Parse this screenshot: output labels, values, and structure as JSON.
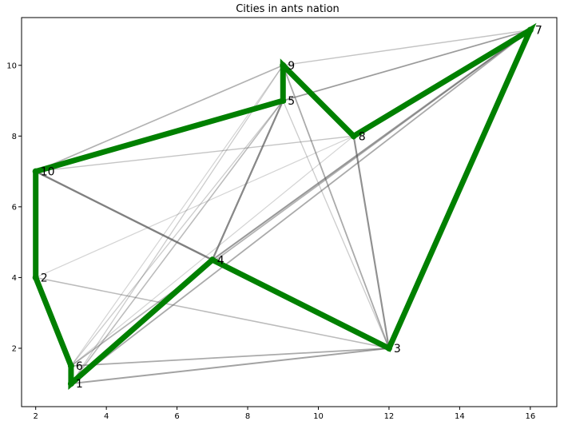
{
  "chart_data": {
    "type": "scatter",
    "title": "Cities in ants nation",
    "xlabel": "",
    "ylabel": "",
    "xlim": [
      1.6,
      16.75
    ],
    "ylim": [
      0.35,
      11.35
    ],
    "xticks": [
      2,
      4,
      6,
      8,
      10,
      12,
      14,
      16
    ],
    "yticks": [
      2,
      4,
      6,
      8,
      10
    ],
    "grid": false,
    "cities": [
      {
        "id": "1",
        "x": 3,
        "y": 1
      },
      {
        "id": "2",
        "x": 2,
        "y": 4
      },
      {
        "id": "3",
        "x": 12,
        "y": 2
      },
      {
        "id": "4",
        "x": 7,
        "y": 4.5
      },
      {
        "id": "5",
        "x": 9,
        "y": 9
      },
      {
        "id": "6",
        "x": 3,
        "y": 1.5
      },
      {
        "id": "7",
        "x": 16,
        "y": 11
      },
      {
        "id": "8",
        "x": 11,
        "y": 8
      },
      {
        "id": "9",
        "x": 9,
        "y": 10
      },
      {
        "id": "10",
        "x": 2,
        "y": 7
      }
    ],
    "best_route": [
      "10",
      "5",
      "9",
      "8",
      "7",
      "3",
      "4",
      "1",
      "6",
      "2",
      "10"
    ],
    "pheromone_edges": [
      {
        "from": "10",
        "to": "4",
        "weight": 0.75
      },
      {
        "from": "4",
        "to": "5",
        "weight": 0.7
      },
      {
        "from": "8",
        "to": "3",
        "weight": 0.65
      },
      {
        "from": "10",
        "to": "9",
        "weight": 0.45
      },
      {
        "from": "10",
        "to": "8",
        "weight": 0.35
      },
      {
        "from": "9",
        "to": "7",
        "weight": 0.35
      },
      {
        "from": "5",
        "to": "7",
        "weight": 0.5
      },
      {
        "from": "5",
        "to": "3",
        "weight": 0.3
      },
      {
        "from": "9",
        "to": "3",
        "weight": 0.5
      },
      {
        "from": "4",
        "to": "7",
        "weight": 0.6
      },
      {
        "from": "1",
        "to": "7",
        "weight": 0.5
      },
      {
        "from": "6",
        "to": "7",
        "weight": 0.45
      },
      {
        "from": "2",
        "to": "8",
        "weight": 0.25
      },
      {
        "from": "2",
        "to": "3",
        "weight": 0.4
      },
      {
        "from": "10",
        "to": "7",
        "weight": 0.2
      },
      {
        "from": "1",
        "to": "5",
        "weight": 0.4
      },
      {
        "from": "6",
        "to": "5",
        "weight": 0.3
      },
      {
        "from": "1",
        "to": "9",
        "weight": 0.3
      },
      {
        "from": "6",
        "to": "9",
        "weight": 0.25
      },
      {
        "from": "6",
        "to": "3",
        "weight": 0.5
      },
      {
        "from": "1",
        "to": "3",
        "weight": 0.55
      },
      {
        "from": "4",
        "to": "3",
        "weight": 0.4
      },
      {
        "from": "6",
        "to": "8",
        "weight": 0.25
      }
    ],
    "colors": {
      "route": "#008000",
      "edges": "#555555",
      "background": "#ffffff"
    }
  }
}
